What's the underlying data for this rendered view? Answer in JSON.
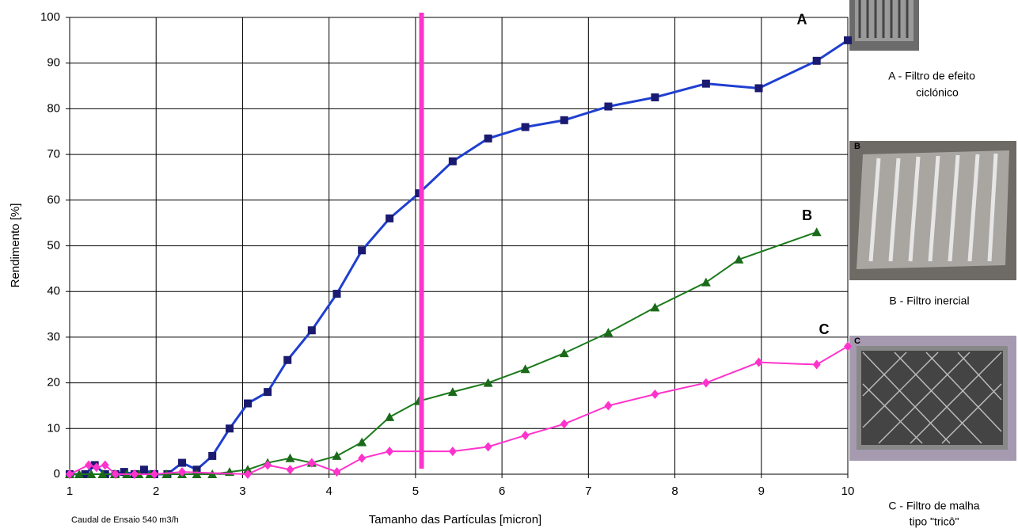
{
  "chart_data": {
    "type": "line",
    "xlabel": "Tamanho das Partículas [micron]",
    "ylabel": "Rendimento [%]",
    "footnote": "Caudal de Ensaio 540 m3/h",
    "xlim": [
      1,
      10
    ],
    "ylim": [
      0,
      100
    ],
    "xticks": [
      1,
      2,
      3,
      4,
      5,
      6,
      7,
      8,
      9,
      10
    ],
    "yticks": [
      0,
      10,
      20,
      30,
      40,
      50,
      60,
      70,
      80,
      90,
      100
    ],
    "grid": true,
    "reference_line": {
      "x": 5.07,
      "color": "#ff33cc"
    },
    "series": [
      {
        "name": "A",
        "color": "#1f3fd0",
        "marker_color": "#1a1a70",
        "marker": "square",
        "x": [
          1.0,
          1.18,
          1.29,
          1.41,
          1.53,
          1.63,
          1.75,
          1.86,
          1.98,
          2.13,
          2.3,
          2.47,
          2.65,
          2.85,
          3.06,
          3.29,
          3.52,
          3.8,
          4.09,
          4.38,
          4.7,
          5.04,
          5.43,
          5.84,
          6.27,
          6.72,
          7.23,
          7.77,
          8.36,
          8.97,
          9.64,
          10.0
        ],
        "values": [
          0,
          0,
          2,
          0,
          0,
          0.5,
          0,
          1,
          0,
          0,
          2.5,
          1,
          4,
          10,
          15.5,
          18,
          25,
          31.5,
          39.5,
          49,
          56,
          61.5,
          68.5,
          73.5,
          76,
          77.5,
          80.5,
          82.5,
          85.5,
          84.5,
          90.5,
          95
        ]
      },
      {
        "name": "B",
        "color": "#1a7a1a",
        "marker_color": "#1a6a1a",
        "marker": "triangle",
        "x": [
          1.0,
          1.11,
          1.25,
          1.38,
          1.52,
          1.66,
          1.8,
          1.93,
          2.12,
          2.3,
          2.47,
          2.65,
          2.85,
          3.06,
          3.29,
          3.55,
          3.8,
          4.09,
          4.38,
          4.7,
          5.04,
          5.43,
          5.84,
          6.27,
          6.72,
          7.23,
          7.77,
          8.36,
          8.74,
          9.64
        ],
        "values": [
          0,
          0,
          0,
          0,
          0,
          0,
          0,
          0,
          0,
          0,
          0,
          0,
          0.5,
          1,
          2.5,
          3.5,
          2.5,
          4,
          7,
          12.5,
          16,
          18,
          20,
          23,
          26.5,
          31,
          36.5,
          42,
          47,
          53
        ]
      },
      {
        "name": "C",
        "color": "#ff33cc",
        "marker_color": "#ff33cc",
        "marker": "diamond",
        "x": [
          1.0,
          1.22,
          1.31,
          1.41,
          1.53,
          1.75,
          1.98,
          2.3,
          3.06,
          3.29,
          3.55,
          3.8,
          4.09,
          4.38,
          4.7,
          5.43,
          5.84,
          6.27,
          6.72,
          7.23,
          7.77,
          8.36,
          8.97,
          9.64,
          10.0
        ],
        "values": [
          0,
          2,
          1.5,
          2,
          0,
          0,
          0,
          0.5,
          0,
          2,
          1,
          2.5,
          0.5,
          3.5,
          5,
          5,
          6,
          8.5,
          11,
          15,
          17.5,
          20,
          24.5,
          24,
          28
        ]
      }
    ],
    "photos": [
      {
        "caption_line1": "A - Filtro de efeito",
        "caption_line2": "ciclónico"
      },
      {
        "tag": "B",
        "caption_line1": "B - Filtro inercial"
      },
      {
        "tag": "C",
        "caption_line1": "C - Filtro de malha",
        "caption_line2": "tipo \"tricô\""
      }
    ]
  }
}
